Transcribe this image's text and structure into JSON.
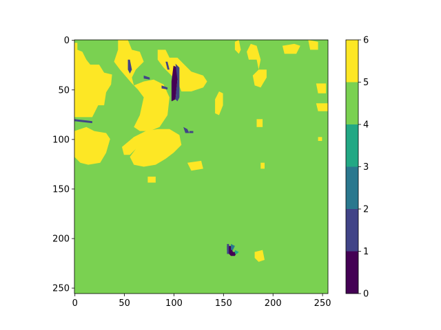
{
  "chart_data": {
    "type": "heatmap",
    "title": "",
    "xlabel": "",
    "ylabel": "",
    "grid_size": [
      256,
      256
    ],
    "xlim": [
      0,
      256
    ],
    "ylim": [
      256,
      0
    ],
    "x_ticks": [
      0,
      50,
      100,
      150,
      200,
      250
    ],
    "y_ticks": [
      0,
      50,
      100,
      150,
      200,
      250
    ],
    "background_class": 4,
    "classes": [
      {
        "value": 0,
        "color": "#440154"
      },
      {
        "value": 1,
        "color": "#414487"
      },
      {
        "value": 2,
        "color": "#2a788e"
      },
      {
        "value": 3,
        "color": "#22a884"
      },
      {
        "value": 4,
        "color": "#7ad151"
      },
      {
        "value": 5,
        "color": "#fde725"
      }
    ],
    "regions": [
      {
        "class": 5,
        "points": [
          [
            0,
            3
          ],
          [
            3,
            3
          ],
          [
            3,
            10
          ],
          [
            8,
            12
          ],
          [
            12,
            20
          ],
          [
            16,
            25
          ],
          [
            25,
            25
          ],
          [
            30,
            33
          ],
          [
            38,
            35
          ],
          [
            37,
            45
          ],
          [
            32,
            53
          ],
          [
            30,
            66
          ],
          [
            24,
            66
          ],
          [
            18,
            78
          ],
          [
            12,
            78
          ],
          [
            0,
            78
          ]
        ]
      },
      {
        "class": 5,
        "points": [
          [
            0,
            92
          ],
          [
            12,
            88
          ],
          [
            20,
            92
          ],
          [
            32,
            94
          ],
          [
            36,
            100
          ],
          [
            32,
            114
          ],
          [
            26,
            124
          ],
          [
            14,
            126
          ],
          [
            6,
            124
          ],
          [
            0,
            118
          ]
        ]
      },
      {
        "class": 5,
        "points": [
          [
            44,
            0
          ],
          [
            54,
            0
          ],
          [
            58,
            10
          ],
          [
            66,
            12
          ],
          [
            70,
            22
          ],
          [
            62,
            30
          ],
          [
            58,
            38
          ],
          [
            60,
            46
          ],
          [
            70,
            42
          ],
          [
            80,
            40
          ],
          [
            90,
            45
          ],
          [
            96,
            58
          ],
          [
            94,
            76
          ],
          [
            86,
            88
          ],
          [
            76,
            92
          ],
          [
            66,
            92
          ],
          [
            60,
            88
          ],
          [
            66,
            76
          ],
          [
            70,
            58
          ],
          [
            64,
            50
          ],
          [
            58,
            44
          ],
          [
            46,
            30
          ],
          [
            40,
            22
          ],
          [
            44,
            10
          ]
        ]
      },
      {
        "class": 5,
        "points": [
          [
            48,
            108
          ],
          [
            60,
            98
          ],
          [
            72,
            92
          ],
          [
            84,
            90
          ],
          [
            96,
            90
          ],
          [
            106,
            96
          ],
          [
            108,
            106
          ],
          [
            100,
            114
          ],
          [
            92,
            120
          ],
          [
            82,
            126
          ],
          [
            70,
            128
          ],
          [
            60,
            126
          ],
          [
            56,
            118
          ],
          [
            62,
            110
          ],
          [
            56,
            116
          ],
          [
            50,
            116
          ]
        ]
      },
      {
        "class": 5,
        "points": [
          [
            84,
            10
          ],
          [
            92,
            10
          ],
          [
            96,
            18
          ],
          [
            104,
            18
          ],
          [
            110,
            24
          ],
          [
            118,
            32
          ],
          [
            130,
            36
          ],
          [
            134,
            42
          ],
          [
            130,
            48
          ],
          [
            118,
            52
          ],
          [
            108,
            52
          ],
          [
            104,
            42
          ],
          [
            96,
            34
          ],
          [
            90,
            28
          ],
          [
            84,
            20
          ]
        ]
      },
      {
        "class": 5,
        "points": [
          [
            142,
            60
          ],
          [
            146,
            52
          ],
          [
            150,
            54
          ],
          [
            150,
            66
          ],
          [
            146,
            76
          ],
          [
            142,
            74
          ]
        ]
      },
      {
        "class": 5,
        "points": [
          [
            162,
            2
          ],
          [
            166,
            0
          ],
          [
            168,
            10
          ],
          [
            166,
            14
          ],
          [
            162,
            10
          ]
        ]
      },
      {
        "class": 5,
        "points": [
          [
            178,
            4
          ],
          [
            184,
            6
          ],
          [
            188,
            20
          ],
          [
            186,
            30
          ],
          [
            194,
            30
          ],
          [
            194,
            38
          ],
          [
            188,
            48
          ],
          [
            182,
            46
          ],
          [
            180,
            36
          ],
          [
            186,
            30
          ],
          [
            184,
            20
          ],
          [
            176,
            20
          ],
          [
            174,
            12
          ]
        ]
      },
      {
        "class": 5,
        "points": [
          [
            210,
            6
          ],
          [
            222,
            4
          ],
          [
            228,
            6
          ],
          [
            224,
            14
          ],
          [
            212,
            14
          ]
        ]
      },
      {
        "class": 5,
        "points": [
          [
            236,
            0
          ],
          [
            246,
            2
          ],
          [
            246,
            10
          ],
          [
            238,
            10
          ]
        ]
      },
      {
        "class": 5,
        "points": [
          [
            244,
            44
          ],
          [
            254,
            44
          ],
          [
            254,
            54
          ],
          [
            246,
            54
          ]
        ]
      },
      {
        "class": 5,
        "points": [
          [
            244,
            64
          ],
          [
            256,
            64
          ],
          [
            256,
            72
          ],
          [
            246,
            72
          ]
        ]
      },
      {
        "class": 5,
        "points": [
          [
            184,
            80
          ],
          [
            190,
            80
          ],
          [
            190,
            88
          ],
          [
            184,
            88
          ]
        ]
      },
      {
        "class": 5,
        "points": [
          [
            114,
            124
          ],
          [
            128,
            122
          ],
          [
            130,
            130
          ],
          [
            118,
            132
          ]
        ]
      },
      {
        "class": 5,
        "points": [
          [
            74,
            138
          ],
          [
            82,
            138
          ],
          [
            82,
            144
          ],
          [
            74,
            144
          ]
        ]
      },
      {
        "class": 5,
        "points": [
          [
            182,
            214
          ],
          [
            190,
            212
          ],
          [
            192,
            222
          ],
          [
            186,
            224
          ],
          [
            182,
            220
          ]
        ]
      },
      {
        "class": 5,
        "points": [
          [
            188,
            124
          ],
          [
            192,
            124
          ],
          [
            192,
            130
          ],
          [
            188,
            130
          ]
        ]
      },
      {
        "class": 5,
        "points": [
          [
            246,
            98
          ],
          [
            250,
            98
          ],
          [
            250,
            102
          ],
          [
            246,
            102
          ]
        ]
      },
      {
        "class": 0,
        "points": [
          [
            100,
            26
          ],
          [
            104,
            28
          ],
          [
            104,
            40
          ],
          [
            102,
            60
          ],
          [
            98,
            62
          ],
          [
            98,
            42
          ]
        ]
      },
      {
        "class": 1,
        "points": [
          [
            102,
            24
          ],
          [
            106,
            28
          ],
          [
            106,
            58
          ],
          [
            104,
            62
          ],
          [
            102,
            60
          ],
          [
            104,
            40
          ]
        ]
      },
      {
        "class": 1,
        "points": [
          [
            0,
            80
          ],
          [
            18,
            82
          ],
          [
            18,
            84
          ],
          [
            0,
            82
          ]
        ]
      },
      {
        "class": 1,
        "points": [
          [
            54,
            20
          ],
          [
            56,
            20
          ],
          [
            58,
            30
          ],
          [
            56,
            34
          ],
          [
            54,
            30
          ]
        ]
      },
      {
        "class": 1,
        "points": [
          [
            70,
            36
          ],
          [
            76,
            38
          ],
          [
            76,
            40
          ],
          [
            70,
            39
          ]
        ]
      },
      {
        "class": 1,
        "points": [
          [
            88,
            46
          ],
          [
            94,
            48
          ],
          [
            94,
            50
          ],
          [
            88,
            49
          ]
        ]
      },
      {
        "class": 1,
        "points": [
          [
            92,
            22
          ],
          [
            94,
            22
          ],
          [
            96,
            30
          ],
          [
            94,
            30
          ]
        ]
      },
      {
        "class": 1,
        "points": [
          [
            110,
            88
          ],
          [
            114,
            90
          ],
          [
            116,
            94
          ],
          [
            112,
            94
          ]
        ]
      },
      {
        "class": 1,
        "points": [
          [
            116,
            92
          ],
          [
            120,
            92
          ],
          [
            120,
            94
          ],
          [
            116,
            94
          ]
        ]
      },
      {
        "class": 0,
        "points": [
          [
            154,
            208
          ],
          [
            158,
            208
          ],
          [
            160,
            214
          ],
          [
            164,
            214
          ],
          [
            162,
            218
          ],
          [
            158,
            218
          ],
          [
            156,
            216
          ],
          [
            154,
            212
          ]
        ]
      },
      {
        "class": 2,
        "points": [
          [
            158,
            206
          ],
          [
            162,
            208
          ],
          [
            160,
            212
          ],
          [
            158,
            212
          ]
        ]
      },
      {
        "class": 3,
        "points": [
          [
            162,
            212
          ],
          [
            166,
            214
          ],
          [
            164,
            216
          ],
          [
            162,
            216
          ]
        ]
      },
      {
        "class": 1,
        "points": [
          [
            154,
            206
          ],
          [
            156,
            206
          ],
          [
            156,
            216
          ],
          [
            154,
            216
          ]
        ]
      }
    ],
    "colorbar": {
      "ticks": [
        0,
        1,
        2,
        3,
        4,
        5,
        6
      ],
      "bins": [
        {
          "from": 0,
          "to": 1,
          "color": "#440154"
        },
        {
          "from": 1,
          "to": 2,
          "color": "#414487"
        },
        {
          "from": 2,
          "to": 3,
          "color": "#2a788e"
        },
        {
          "from": 3,
          "to": 4,
          "color": "#22a884"
        },
        {
          "from": 4,
          "to": 5,
          "color": "#7ad151"
        },
        {
          "from": 5,
          "to": 6,
          "color": "#fde725"
        }
      ]
    }
  }
}
